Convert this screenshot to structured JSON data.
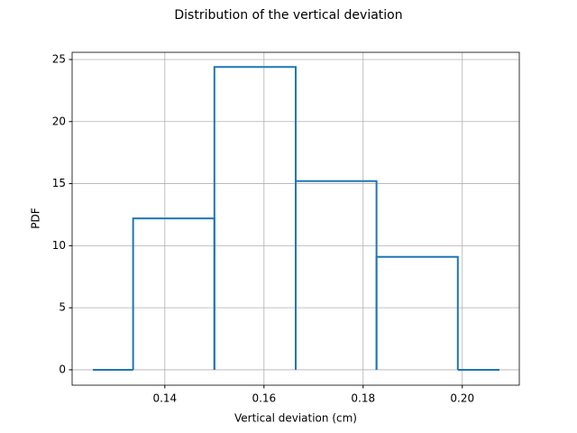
{
  "chart_data": {
    "type": "histogram",
    "title": "Distribution of the vertical deviation",
    "xlabel": "Vertical deviation (cm)",
    "ylabel": "PDF",
    "bins": [
      0.1255,
      0.1336,
      0.15,
      0.1664,
      0.1827,
      0.1991,
      0.2075
    ],
    "values": [
      0,
      12.2,
      24.4,
      15.2,
      9.1,
      0
    ],
    "color": "#1f77b4",
    "xlim": [
      0.1213,
      0.2115
    ],
    "xticks": [
      0.14,
      0.16,
      0.18,
      {
        "value": 0.2,
        "label": "0.20"
      }
    ],
    "ylim": [
      -1.24,
      25.58
    ],
    "yticks": [
      0,
      5,
      10,
      15,
      20,
      25
    ],
    "grid": true
  }
}
